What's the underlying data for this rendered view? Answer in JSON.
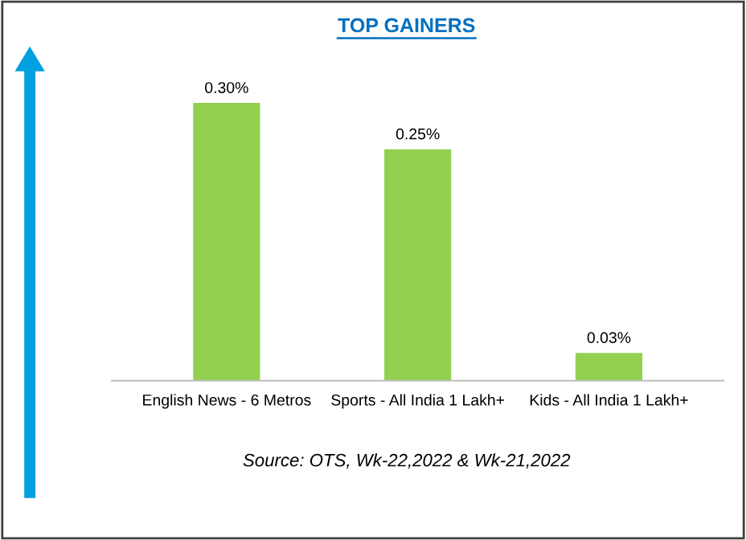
{
  "chart_data": {
    "type": "bar",
    "title": "TOP GAINERS",
    "categories": [
      "English News - 6 Metros",
      "Sports - All India 1 Lakh+",
      "Kids - All India 1 Lakh+"
    ],
    "values": [
      0.3,
      0.25,
      0.03
    ],
    "value_labels": [
      "0.30%",
      "0.25%",
      "0.03%"
    ],
    "color": "#92d050",
    "annotations": [
      "Source: OTS, Wk-22,2022 & Wk-21,2022"
    ]
  }
}
